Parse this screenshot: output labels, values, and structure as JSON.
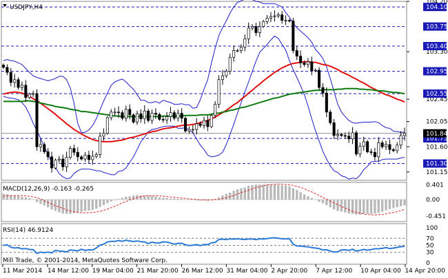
{
  "symbol_title": "USDJPY,H4",
  "copyright": "Mill Trade, © 2001-2014, MetaQuotes Software Corp.",
  "colors": {
    "bull_candle": "#ffffff",
    "bear_candle": "#000000",
    "wick": "#000000",
    "bollinger": "#1c1cc8",
    "ma_fast": "#e01010",
    "ma_slow": "#0f7a0f",
    "level_line": "#1a1ab8",
    "current_price_line": "#8a8a8a",
    "macd_hist": "#b8b8b8",
    "macd_signal": "#e02020",
    "rsi_line": "#2a7ad6",
    "rsi_level": "#7a7a7a",
    "current_price_box": "#000000"
  },
  "chart_data": [
    {
      "type": "candlestick",
      "title": "USDJPY,H4",
      "ylim": [
        101.0,
        104.2
      ],
      "y_ticks": [
        "104.20",
        "103.30",
        "102.45",
        "102.05",
        "101.60",
        "101.15"
      ],
      "horizontal_levels": [
        "104.10",
        "103.75",
        "103.40",
        "102.95",
        "102.55",
        "101.75",
        "101.30"
      ],
      "current_price": "101.84",
      "x_labels": [
        "11 Mar 2014",
        "14 Mar 12:00",
        "19 Mar 04:00",
        "21 Mar 20:00",
        "26 Mar 12:00",
        "31 Mar 04:00",
        "2 Apr 20:00",
        "7 Apr 12:00",
        "10 Apr 04:00",
        "14 Apr 20:00"
      ],
      "close": [
        103.02,
        102.93,
        102.75,
        102.8,
        102.66,
        102.7,
        102.48,
        102.54,
        102.55,
        101.6,
        101.64,
        101.51,
        101.42,
        101.22,
        101.36,
        101.38,
        101.24,
        101.41,
        101.57,
        101.5,
        101.42,
        101.38,
        101.45,
        101.37,
        101.43,
        101.46,
        101.79,
        101.84,
        102.12,
        102.22,
        102.22,
        102.21,
        102.11,
        102.27,
        102.17,
        102.04,
        102.19,
        102.1,
        102.24,
        102.07,
        102.2,
        102.18,
        102.09,
        102.08,
        102.14,
        102.21,
        102.11,
        102.2,
        102.11,
        101.88,
        101.91,
        101.91,
        102.01,
        101.98,
        102.07,
        101.96,
        102.16,
        102.36,
        102.8,
        102.87,
        102.95,
        103.2,
        103.32,
        103.32,
        103.38,
        103.53,
        103.72,
        103.75,
        103.64,
        103.75,
        103.84,
        103.9,
        103.93,
        103.94,
        103.96,
        103.86,
        103.86,
        103.85,
        103.32,
        103.22,
        103.1,
        103.07,
        103.12,
        102.96,
        102.97,
        102.66,
        102.56,
        102.22,
        102.03,
        101.8,
        101.82,
        101.8,
        101.79,
        101.74,
        101.85,
        101.47,
        101.61,
        101.69,
        101.51,
        101.5,
        101.42,
        101.67,
        101.6,
        101.64,
        101.55,
        101.53,
        101.63,
        101.8,
        101.84
      ],
      "bands_upper": [
        103.14,
        103.16,
        103.14,
        103.13,
        103.1,
        103.07,
        103.0,
        102.93,
        102.87,
        102.84,
        102.82,
        102.8,
        102.78,
        102.8,
        102.82,
        102.86,
        102.86,
        102.8,
        102.65,
        102.38,
        102.02,
        101.85,
        101.86,
        101.9,
        101.98,
        102.1,
        102.26,
        102.42,
        102.56,
        102.7,
        102.76,
        102.79,
        102.81,
        102.76,
        102.69,
        102.63,
        102.53,
        102.43,
        102.43,
        102.39,
        102.39,
        102.41,
        102.38,
        102.43,
        102.41,
        102.39,
        102.36,
        102.36,
        102.37,
        102.35,
        102.35,
        102.29,
        102.3,
        102.44,
        102.63,
        102.8,
        103.1,
        103.36,
        103.59,
        103.73,
        103.85,
        103.99,
        104.1,
        104.18,
        104.21,
        104.24,
        104.25,
        104.23,
        104.2,
        104.19,
        104.16,
        104.16,
        104.16,
        104.16,
        104.13,
        104.1,
        104.0,
        103.92,
        103.81,
        103.73,
        103.67,
        103.61,
        103.55,
        103.47,
        103.34,
        103.27,
        103.18,
        103.03,
        102.82,
        102.59,
        102.36,
        102.22,
        102.14,
        102.07,
        102.03,
        102.02,
        102.03,
        102.04,
        102.04,
        102.04,
        102.05,
        102.03,
        101.98,
        101.94,
        101.93,
        101.88,
        101.87,
        101.86,
        101.86
      ],
      "bands_lower": [
        102.5,
        102.48,
        102.47,
        102.46,
        102.44,
        102.39,
        102.31,
        102.18,
        102.02,
        101.89,
        101.75,
        101.6,
        101.46,
        101.32,
        101.23,
        101.12,
        101.06,
        101.03,
        101.04,
        101.12,
        101.17,
        101.2,
        101.2,
        101.2,
        101.19,
        101.17,
        101.17,
        101.14,
        101.12,
        101.1,
        101.1,
        101.16,
        101.17,
        101.22,
        101.32,
        101.42,
        101.55,
        101.69,
        101.77,
        101.87,
        101.91,
        101.92,
        101.94,
        101.96,
        101.97,
        101.97,
        101.97,
        101.93,
        101.93,
        101.94,
        101.9,
        101.85,
        101.74,
        101.63,
        101.55,
        101.45,
        101.42,
        101.43,
        101.45,
        101.5,
        101.64,
        101.82,
        102.0,
        102.2,
        102.39,
        102.58,
        102.76,
        102.95,
        103.13,
        103.29,
        103.36,
        103.43,
        103.51,
        103.58,
        103.54,
        103.43,
        103.33,
        103.14,
        102.98,
        102.84,
        102.69,
        102.54,
        102.33,
        102.1,
        101.89,
        101.7,
        101.52,
        101.38,
        101.26,
        101.17,
        101.14,
        101.08,
        101.06,
        101.02,
        101.04,
        101.03,
        101.09,
        101.19,
        101.25,
        101.33,
        101.34,
        101.34,
        101.37,
        101.38,
        101.38,
        101.38,
        101.38,
        101.4,
        101.41
      ],
      "ma_fast": [
        102.54,
        102.56,
        102.57,
        102.58,
        102.57,
        102.56,
        102.53,
        102.5,
        102.46,
        102.42,
        102.38,
        102.33,
        102.28,
        102.23,
        102.18,
        102.12,
        102.07,
        102.01,
        101.96,
        101.91,
        101.87,
        101.83,
        101.79,
        101.76,
        101.73,
        101.71,
        101.7,
        101.69,
        101.69,
        101.69,
        101.7,
        101.71,
        101.72,
        101.74,
        101.76,
        101.77,
        101.79,
        101.81,
        101.83,
        101.85,
        101.87,
        101.88,
        101.9,
        101.92,
        101.93,
        101.94,
        101.95,
        101.97,
        101.98,
        101.99,
        101.99,
        102.0,
        102.01,
        102.03,
        102.05,
        102.07,
        102.1,
        102.13,
        102.17,
        102.21,
        102.25,
        102.3,
        102.35,
        102.39,
        102.45,
        102.5,
        102.56,
        102.61,
        102.67,
        102.72,
        102.78,
        102.83,
        102.88,
        102.93,
        102.97,
        103.01,
        103.04,
        103.07,
        103.09,
        103.1,
        103.11,
        103.12,
        103.12,
        103.11,
        103.11,
        103.09,
        103.07,
        103.06,
        103.04,
        103.01,
        102.98,
        102.94,
        102.91,
        102.88,
        102.84,
        102.81,
        102.77,
        102.74,
        102.7,
        102.66,
        102.63,
        102.59,
        102.56,
        102.53,
        102.51,
        102.48,
        102.45,
        102.43,
        102.4
      ],
      "ma_slow": [
        102.41,
        102.41,
        102.41,
        102.41,
        102.41,
        102.41,
        102.42,
        102.42,
        102.41,
        102.4,
        102.38,
        102.37,
        102.35,
        102.34,
        102.32,
        102.31,
        102.3,
        102.29,
        102.27,
        102.26,
        102.25,
        102.23,
        102.23,
        102.22,
        102.21,
        102.2,
        102.19,
        102.18,
        102.17,
        102.16,
        102.15,
        102.15,
        102.14,
        102.14,
        102.14,
        102.14,
        102.14,
        102.14,
        102.14,
        102.14,
        102.14,
        102.14,
        102.14,
        102.15,
        102.15,
        102.15,
        102.15,
        102.15,
        102.15,
        102.16,
        102.16,
        102.16,
        102.16,
        102.17,
        102.17,
        102.17,
        102.18,
        102.2,
        102.2,
        102.22,
        102.23,
        102.25,
        102.26,
        102.28,
        102.3,
        102.31,
        102.33,
        102.35,
        102.37,
        102.39,
        102.41,
        102.43,
        102.45,
        102.47,
        102.48,
        102.5,
        102.52,
        102.54,
        102.55,
        102.56,
        102.57,
        102.58,
        102.59,
        102.6,
        102.61,
        102.61,
        102.62,
        102.62,
        102.62,
        102.62,
        102.63,
        102.63,
        102.64,
        102.64,
        102.64,
        102.64,
        102.63,
        102.63,
        102.62,
        102.62,
        102.61,
        102.6,
        102.6,
        102.59,
        102.58,
        102.57,
        102.57,
        102.56,
        102.55
      ]
    },
    {
      "type": "bar",
      "title": "MACD(12,26,9) -0.163 -0.265",
      "y_ticks": [
        "0.401",
        "0.00",
        "-0.451"
      ],
      "ylim": [
        -0.6,
        0.47
      ],
      "histogram": [
        0.16,
        0.15,
        0.12,
        0.11,
        0.1,
        0.08,
        0.06,
        0.04,
        0.01,
        -0.07,
        -0.12,
        -0.16,
        -0.21,
        -0.27,
        -0.31,
        -0.35,
        -0.38,
        -0.39,
        -0.39,
        -0.37,
        -0.35,
        -0.33,
        -0.31,
        -0.3,
        -0.28,
        -0.25,
        -0.2,
        -0.15,
        -0.1,
        -0.05,
        -0.02,
        0.02,
        0.05,
        0.08,
        0.09,
        0.11,
        0.12,
        0.11,
        0.11,
        0.11,
        0.1,
        0.09,
        0.06,
        0.05,
        0.04,
        0.03,
        0.03,
        0.02,
        0.02,
        0.01,
        0.0,
        -0.01,
        -0.02,
        -0.02,
        -0.02,
        -0.03,
        -0.01,
        0.02,
        0.06,
        0.11,
        0.15,
        0.19,
        0.24,
        0.28,
        0.31,
        0.33,
        0.38,
        0.4,
        0.41,
        0.41,
        0.41,
        0.41,
        0.41,
        0.41,
        0.4,
        0.39,
        0.38,
        0.36,
        0.31,
        0.26,
        0.2,
        0.14,
        0.09,
        0.04,
        -0.01,
        -0.06,
        -0.1,
        -0.15,
        -0.21,
        -0.27,
        -0.31,
        -0.33,
        -0.35,
        -0.38,
        -0.39,
        -0.41,
        -0.41,
        -0.4,
        -0.39,
        -0.39,
        -0.38,
        -0.36,
        -0.33,
        -0.29,
        -0.26,
        -0.23,
        -0.21,
        -0.18,
        -0.16
      ],
      "signal": [
        0.09,
        0.1,
        0.11,
        0.11,
        0.11,
        0.11,
        0.1,
        0.09,
        0.07,
        0.05,
        0.02,
        -0.03,
        -0.08,
        -0.12,
        -0.17,
        -0.2,
        -0.24,
        -0.28,
        -0.31,
        -0.33,
        -0.35,
        -0.36,
        -0.36,
        -0.36,
        -0.35,
        -0.34,
        -0.32,
        -0.29,
        -0.26,
        -0.22,
        -0.18,
        -0.14,
        -0.09,
        -0.05,
        -0.01,
        0.02,
        0.06,
        0.08,
        0.1,
        0.11,
        0.11,
        0.11,
        0.1,
        0.09,
        0.08,
        0.07,
        0.06,
        0.05,
        0.04,
        0.03,
        0.02,
        0.01,
        0.0,
        -0.01,
        -0.01,
        -0.01,
        -0.01,
        -0.0,
        0.0,
        0.03,
        0.05,
        0.08,
        0.11,
        0.15,
        0.19,
        0.22,
        0.26,
        0.29,
        0.33,
        0.35,
        0.38,
        0.4,
        0.41,
        0.42,
        0.42,
        0.42,
        0.41,
        0.4,
        0.39,
        0.36,
        0.33,
        0.3,
        0.25,
        0.21,
        0.16,
        0.11,
        0.06,
        0.01,
        -0.04,
        -0.09,
        -0.14,
        -0.19,
        -0.23,
        -0.28,
        -0.32,
        -0.35,
        -0.37,
        -0.39,
        -0.41,
        -0.41,
        -0.42,
        -0.41,
        -0.41,
        -0.39,
        -0.37,
        -0.35,
        -0.33,
        -0.3,
        -0.27
      ]
    },
    {
      "type": "line",
      "title": "RSI(14) 46.9124",
      "y_ticks": [
        "100",
        "70",
        "50",
        "30",
        "0"
      ],
      "ylim": [
        0,
        100
      ],
      "levels": [
        70,
        50,
        30
      ],
      "values": [
        50.0,
        51.3,
        44.6,
        42.4,
        43.2,
        40.0,
        40.8,
        38.2,
        37.9,
        27.1,
        30.6,
        29.0,
        30.8,
        28.5,
        35.8,
        33.8,
        33.2,
        31.4,
        37.0,
        35.4,
        34.2,
        38.9,
        35.2,
        37.5,
        36.5,
        42.3,
        50.4,
        53.6,
        59.6,
        61.4,
        61.2,
        63.8,
        61.4,
        64.5,
        62.6,
        60.7,
        62.3,
        60.4,
        59.7,
        55.0,
        59.0,
        56.6,
        56.9,
        59.8,
        59.5,
        56.3,
        53.6,
        55.4,
        55.8,
        51.4,
        49.3,
        50.6,
        52.0,
        49.2,
        52.1,
        52.0,
        57.0,
        58.2,
        66.7,
        67.6,
        66.2,
        68.2,
        67.7,
        68.6,
        67.4,
        66.7,
        67.9,
        67.8,
        66.3,
        68.7,
        67.9,
        69.1,
        70.8,
        71.6,
        70.0,
        68.7,
        68.2,
        69.0,
        53.4,
        48.0,
        47.9,
        46.4,
        45.7,
        43.5,
        42.2,
        40.5,
        36.9,
        37.3,
        33.7,
        30.7,
        31.4,
        36.8,
        37.2,
        35.4,
        38.9,
        33.5,
        35.7,
        38.2,
        36.3,
        37.9,
        40.1,
        40.1,
        41.4,
        43.5,
        40.8,
        42.1,
        44.1,
        46.0,
        46.9
      ]
    }
  ]
}
